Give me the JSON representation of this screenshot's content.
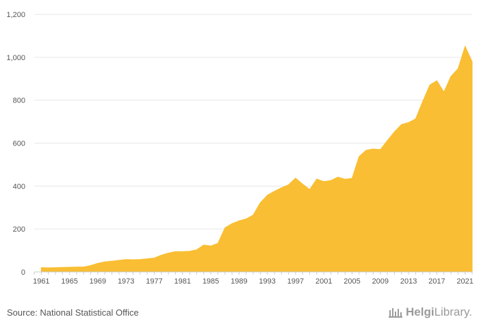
{
  "chart_data": {
    "type": "area",
    "title": "",
    "xlabel": "",
    "ylabel": "",
    "x_tick_labels": [
      "1961",
      "1965",
      "1969",
      "1973",
      "1977",
      "1981",
      "1985",
      "1989",
      "1993",
      "1997",
      "2001",
      "2005",
      "2009",
      "2013",
      "2017",
      "2021"
    ],
    "y_tick_labels": [
      "0",
      "200",
      "400",
      "600",
      "800",
      "1,000",
      "1,200"
    ],
    "ylim": [
      0,
      1200
    ],
    "xlim": [
      1960,
      2022
    ],
    "grid": true,
    "color": "#f9be33",
    "x": [
      1961,
      1962,
      1963,
      1964,
      1965,
      1966,
      1967,
      1968,
      1969,
      1970,
      1971,
      1972,
      1973,
      1974,
      1975,
      1976,
      1977,
      1978,
      1979,
      1980,
      1981,
      1982,
      1983,
      1984,
      1985,
      1986,
      1987,
      1988,
      1989,
      1990,
      1991,
      1992,
      1993,
      1994,
      1995,
      1996,
      1997,
      1998,
      1999,
      2000,
      2001,
      2002,
      2003,
      2004,
      2005,
      2006,
      2007,
      2008,
      2009,
      2010,
      2011,
      2012,
      2013,
      2014,
      2015,
      2016,
      2017,
      2018,
      2019,
      2020,
      2021,
      2022
    ],
    "values": [
      20,
      19,
      20,
      21,
      22,
      23,
      23,
      30,
      40,
      47,
      50,
      54,
      58,
      57,
      58,
      61,
      65,
      78,
      88,
      95,
      95,
      96,
      103,
      125,
      121,
      133,
      205,
      225,
      238,
      247,
      265,
      322,
      357,
      376,
      392,
      406,
      437,
      409,
      384,
      433,
      421,
      426,
      442,
      432,
      436,
      538,
      567,
      573,
      570,
      612,
      653,
      687,
      696,
      713,
      794,
      871,
      891,
      838,
      911,
      947,
      1051,
      979
    ]
  },
  "footer": {
    "source": "Source: National Statistical Office",
    "logo_text_bold": "Helgi",
    "logo_text": "Library.",
    "logo_icon": "library-building-icon"
  }
}
